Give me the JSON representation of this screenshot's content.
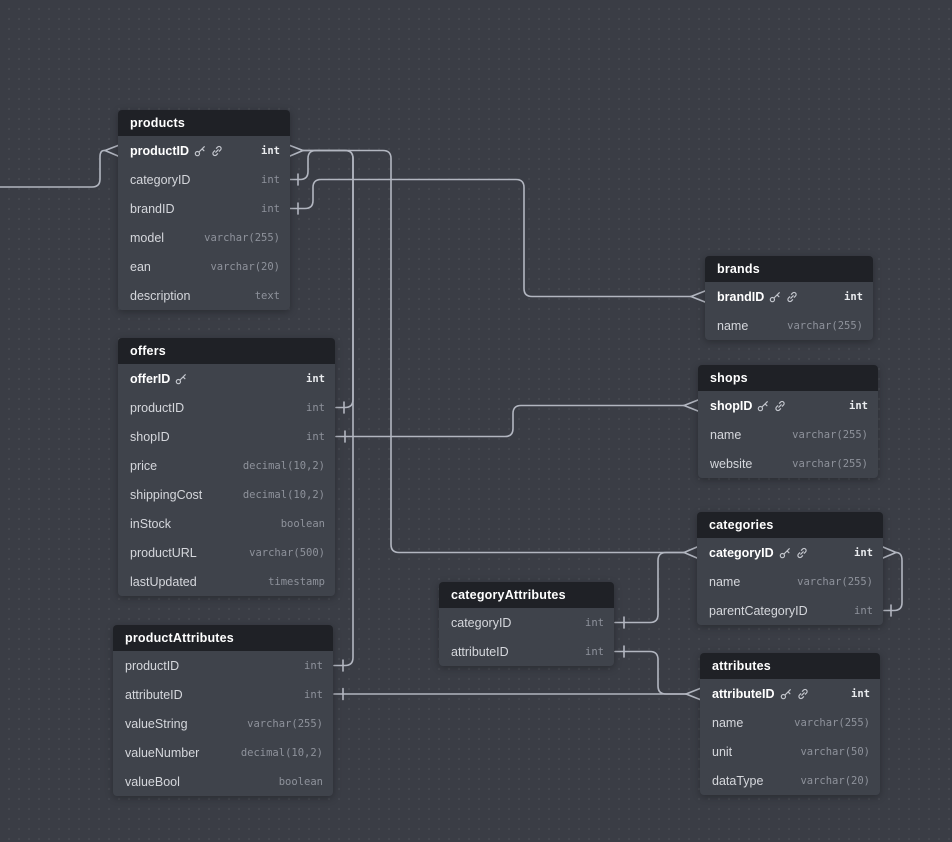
{
  "diagram": {
    "kind": "database-er-diagram",
    "colors": {
      "canvas_bg": "#3a3d45",
      "grid_dot": "#4a4d55",
      "table_body": "#3f434b",
      "table_header": "#1f2126",
      "header_text": "#ffffff",
      "field_text": "#d5d7dc",
      "type_text": "#8e929b",
      "pk_text": "#ffffff",
      "relationship_line": "#b2b6c0"
    }
  },
  "tables": [
    {
      "name": "products",
      "fields": [
        {
          "name": "productID",
          "type": "int",
          "pk": true,
          "icons": [
            "key",
            "link"
          ]
        },
        {
          "name": "categoryID",
          "type": "int",
          "pk": false,
          "icons": []
        },
        {
          "name": "brandID",
          "type": "int",
          "pk": false,
          "icons": []
        },
        {
          "name": "model",
          "type": "varchar(255)",
          "pk": false,
          "icons": []
        },
        {
          "name": "ean",
          "type": "varchar(20)",
          "pk": false,
          "icons": []
        },
        {
          "name": "description",
          "type": "text",
          "pk": false,
          "icons": []
        }
      ]
    },
    {
      "name": "offers",
      "fields": [
        {
          "name": "offerID",
          "type": "int",
          "pk": true,
          "icons": [
            "key"
          ]
        },
        {
          "name": "productID",
          "type": "int",
          "pk": false,
          "icons": []
        },
        {
          "name": "shopID",
          "type": "int",
          "pk": false,
          "icons": []
        },
        {
          "name": "price",
          "type": "decimal(10,2)",
          "pk": false,
          "icons": []
        },
        {
          "name": "shippingCost",
          "type": "decimal(10,2)",
          "pk": false,
          "icons": []
        },
        {
          "name": "inStock",
          "type": "boolean",
          "pk": false,
          "icons": []
        },
        {
          "name": "productURL",
          "type": "varchar(500)",
          "pk": false,
          "icons": []
        },
        {
          "name": "lastUpdated",
          "type": "timestamp",
          "pk": false,
          "icons": []
        }
      ]
    },
    {
      "name": "productAttributes",
      "fields": [
        {
          "name": "productID",
          "type": "int",
          "pk": false,
          "icons": []
        },
        {
          "name": "attributeID",
          "type": "int",
          "pk": false,
          "icons": []
        },
        {
          "name": "valueString",
          "type": "varchar(255)",
          "pk": false,
          "icons": []
        },
        {
          "name": "valueNumber",
          "type": "decimal(10,2)",
          "pk": false,
          "icons": []
        },
        {
          "name": "valueBool",
          "type": "boolean",
          "pk": false,
          "icons": []
        }
      ]
    },
    {
      "name": "brands",
      "fields": [
        {
          "name": "brandID",
          "type": "int",
          "pk": true,
          "icons": [
            "key",
            "link"
          ]
        },
        {
          "name": "name",
          "type": "varchar(255)",
          "pk": false,
          "icons": []
        }
      ]
    },
    {
      "name": "shops",
      "fields": [
        {
          "name": "shopID",
          "type": "int",
          "pk": true,
          "icons": [
            "key",
            "link"
          ]
        },
        {
          "name": "name",
          "type": "varchar(255)",
          "pk": false,
          "icons": []
        },
        {
          "name": "website",
          "type": "varchar(255)",
          "pk": false,
          "icons": []
        }
      ]
    },
    {
      "name": "categories",
      "fields": [
        {
          "name": "categoryID",
          "type": "int",
          "pk": true,
          "icons": [
            "key",
            "link"
          ]
        },
        {
          "name": "name",
          "type": "varchar(255)",
          "pk": false,
          "icons": []
        },
        {
          "name": "parentCategoryID",
          "type": "int",
          "pk": false,
          "icons": []
        }
      ]
    },
    {
      "name": "categoryAttributes",
      "fields": [
        {
          "name": "categoryID",
          "type": "int",
          "pk": false,
          "icons": []
        },
        {
          "name": "attributeID",
          "type": "int",
          "pk": false,
          "icons": []
        }
      ]
    },
    {
      "name": "attributes",
      "fields": [
        {
          "name": "attributeID",
          "type": "int",
          "pk": true,
          "icons": [
            "key",
            "link"
          ]
        },
        {
          "name": "name",
          "type": "varchar(255)",
          "pk": false,
          "icons": []
        },
        {
          "name": "unit",
          "type": "varchar(50)",
          "pk": false,
          "icons": []
        },
        {
          "name": "dataType",
          "type": "varchar(20)",
          "pk": false,
          "icons": []
        }
      ]
    }
  ],
  "relationships": [
    {
      "from": "offers.productID",
      "to": "products.productID",
      "from_marker": "one",
      "to_marker": "many"
    },
    {
      "from": "productAttributes.productID",
      "to": "products.productID",
      "from_marker": "one",
      "to_marker": "many"
    },
    {
      "from": "products.categoryID",
      "to": "categories.categoryID",
      "from_marker": "one",
      "to_marker": "many"
    },
    {
      "from": "products.brandID",
      "to": "brands.brandID",
      "from_marker": "one",
      "to_marker": "many"
    },
    {
      "from": "offers.shopID",
      "to": "shops.shopID",
      "from_marker": "one",
      "to_marker": "many"
    },
    {
      "from": "productAttributes.attributeID",
      "to": "attributes.attributeID",
      "from_marker": "one",
      "to_marker": "many"
    },
    {
      "from": "categoryAttributes.categoryID",
      "to": "categories.categoryID",
      "from_marker": "one",
      "to_marker": "many"
    },
    {
      "from": "categoryAttributes.attributeID",
      "to": "attributes.attributeID",
      "from_marker": "one",
      "to_marker": "many"
    },
    {
      "from": "categories.parentCategoryID",
      "to": "categories.categoryID",
      "from_marker": "one",
      "to_marker": "many"
    },
    {
      "from": "offscreen-left",
      "to": "products.productID",
      "from_marker": "none",
      "to_marker": "many"
    }
  ]
}
